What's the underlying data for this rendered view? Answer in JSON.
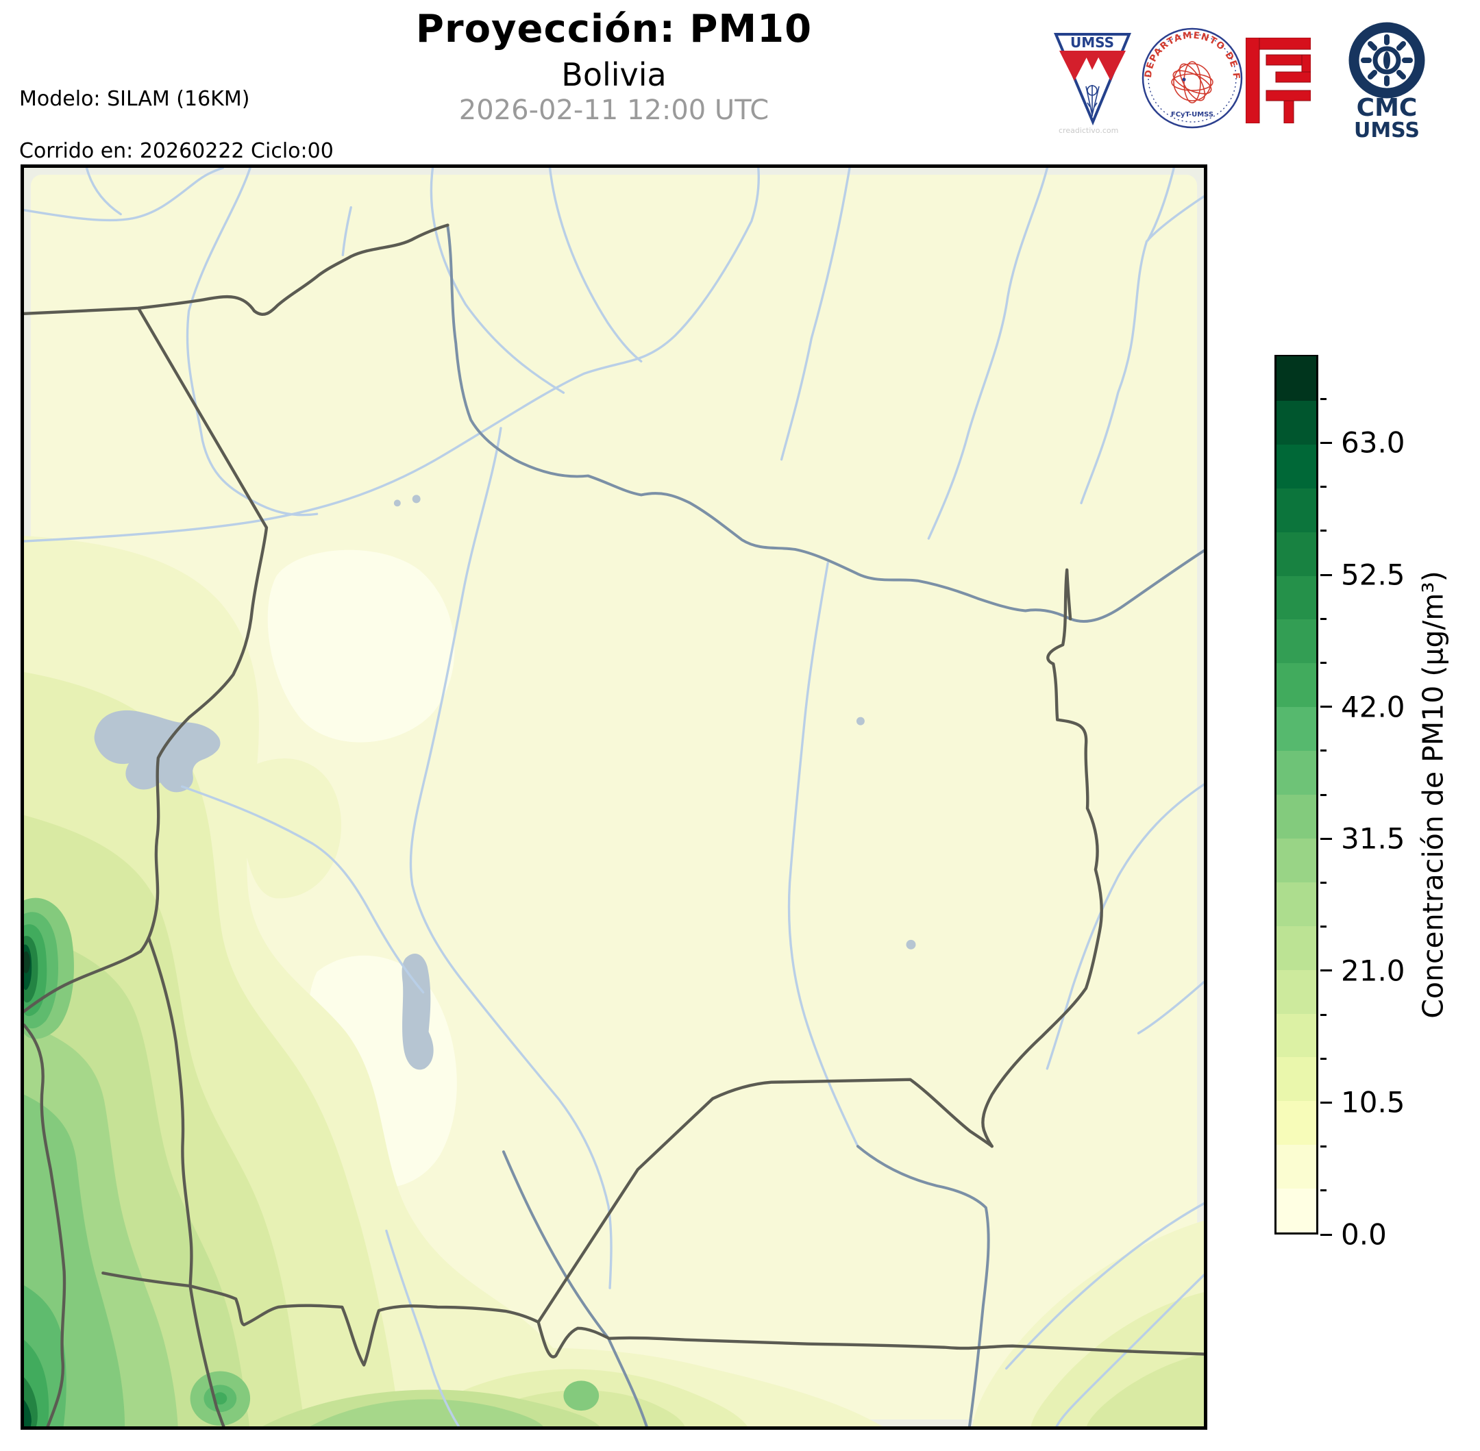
{
  "header": {
    "title": "Proyección: PM10",
    "subtitle": "Bolivia",
    "datetime": "2026-02-11 12:00 UTC",
    "model_line1": "Modelo: SILAM (16KM)",
    "model_line2": "Corrido en: 20260222 Ciclo:00"
  },
  "logos": {
    "umss_pennant": {
      "text": "UMSS",
      "watermark": "creadictivo.com",
      "blue": "#24418c",
      "red": "#d41f2c"
    },
    "fisica_seal": {
      "arc_text": "DEPARTAMENTO DE FÍSICA",
      "sub_text": "FCyT-UMSS",
      "blue": "#2b3f8e",
      "red": "#d23b2f"
    },
    "fcyt_mark": {
      "red": "#d6101c"
    },
    "cmc": {
      "line1": "CMC",
      "line2": "UMSS",
      "navy": "#17355f"
    }
  },
  "colorbar": {
    "label": "Concentración de PM10 (µg/m³)",
    "unit": "µg/m³",
    "min": 0,
    "max": 70,
    "step": 3.5,
    "major_step": 10.5,
    "major_ticks": [
      {
        "value": 0,
        "label": "0.0"
      },
      {
        "value": 10.5,
        "label": "10.5"
      },
      {
        "value": 21,
        "label": "21.0"
      },
      {
        "value": 31.5,
        "label": "31.5"
      },
      {
        "value": 42,
        "label": "42.0"
      },
      {
        "value": 52.5,
        "label": "52.5"
      },
      {
        "value": 63,
        "label": "63.0"
      }
    ],
    "segments": [
      "#ffffe3",
      "#fbfdd1",
      "#f7fcb9",
      "#eaf7ac",
      "#dcf1a4",
      "#cdea9d",
      "#bce394",
      "#addd8e",
      "#99d486",
      "#83cb7d",
      "#6ec377",
      "#56b96e",
      "#41ab5d",
      "#339e54",
      "#25914a",
      "#188241",
      "#0c753c",
      "#006837",
      "#00562e",
      "#00351d"
    ]
  },
  "map": {
    "region": "Bolivia",
    "variable": "PM10",
    "colors": {
      "axes_bg": "#edefe6",
      "data_bg": "#f8f9d8",
      "river": "#b9cfe7",
      "river_dark": "#7b90a6",
      "border": "#5b5b52",
      "lake": "#b6c5d2",
      "frame": "#000000"
    },
    "contour_levels": [
      "#fdfeea",
      "#f8f9d8",
      "#f2f6c8",
      "#e7f1b4",
      "#d9eaa3",
      "#c6e296",
      "#a6d78a",
      "#84ca7d",
      "#5fbb6e",
      "#41ab5d",
      "#238443",
      "#00572e",
      "#0b3e22"
    ]
  }
}
